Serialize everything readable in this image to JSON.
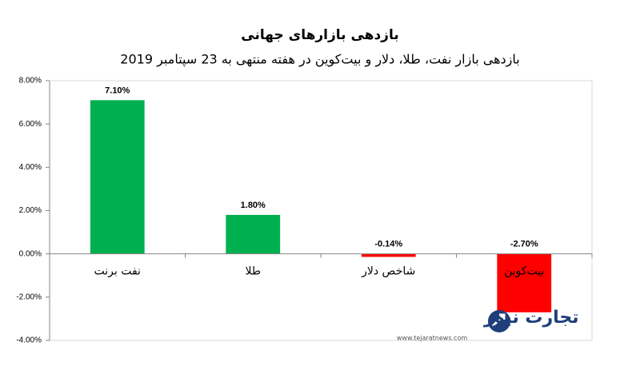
{
  "chart_data": {
    "type": "bar",
    "title": "بازدهی بازارهای جهانی",
    "subtitle": "بازدهی بازار نفت، طلا، دلار و بیت‌کوین در هفته منتهی به 23 سپتامبر 2019",
    "categories": [
      "نفت برنت",
      "طلا",
      "شاخص دلار",
      "بیت‌کوین"
    ],
    "values": [
      7.1,
      1.8,
      -0.14,
      -2.7
    ],
    "value_labels": [
      "7.10%",
      "1.80%",
      "-0.14%",
      "-2.70%"
    ],
    "colors": [
      "#00b050",
      "#00b050",
      "#ff0000",
      "#ff0000"
    ],
    "ylim": [
      -4,
      8
    ],
    "yticks": [
      {
        "value": -4,
        "label": "-4.00%"
      },
      {
        "value": -2,
        "label": "-2.00%"
      },
      {
        "value": 0,
        "label": "0.00%"
      },
      {
        "value": 2,
        "label": "2.00%"
      },
      {
        "value": 4,
        "label": "4.00%"
      },
      {
        "value": 6,
        "label": "6.00%"
      },
      {
        "value": 8,
        "label": "8.00%"
      }
    ],
    "grid": false,
    "watermark": {
      "brand": "تجارت نیوز",
      "url": "www.tejaratnews.com"
    }
  }
}
